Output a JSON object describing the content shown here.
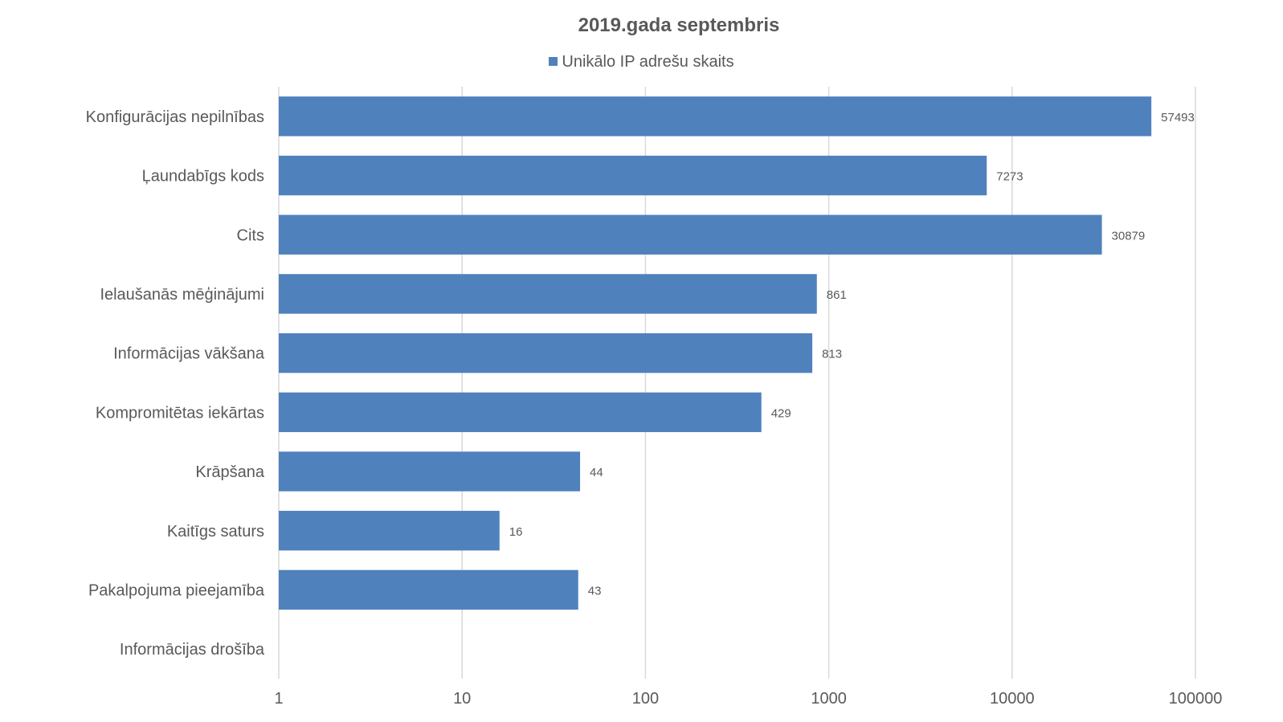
{
  "chart_data": {
    "type": "bar",
    "orientation": "horizontal",
    "title": "2019.gada septembris",
    "xscale": "log",
    "xlim": [
      1,
      100000
    ],
    "xticks": [
      "1",
      "10",
      "100",
      "1000",
      "10000",
      "100000"
    ],
    "grid": true,
    "legend_position": "top",
    "categories": [
      "Konfigurācijas nepilnības",
      "Ļaundabīgs kods",
      "Cits",
      "Ielaušanās mēģinājumi",
      "Informācijas vākšana",
      "Kompromitētas iekārtas",
      "Krāpšana",
      "Kaitīgs saturs",
      "Pakalpojuma pieejamība",
      "Informācijas drošība"
    ],
    "series": [
      {
        "name": "Unikālo IP adrešu skaits",
        "color": "#4f81bd",
        "values": [
          57493,
          7273,
          30879,
          861,
          813,
          429,
          44,
          16,
          43,
          null
        ],
        "labels": [
          "57493",
          "7273",
          "30879",
          "861",
          "813",
          "429",
          "44",
          "16",
          "43",
          ""
        ]
      }
    ]
  }
}
